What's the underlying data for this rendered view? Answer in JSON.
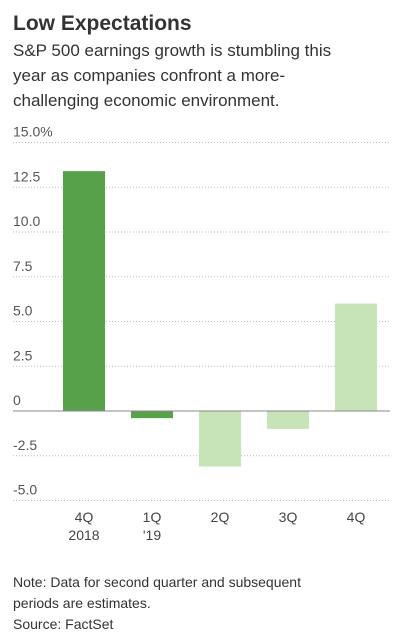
{
  "chart_data": {
    "type": "bar",
    "title": "Low Expectations",
    "subtitle": [
      "S&P 500 earnings growth is stumbling this",
      "year as companies confront a more-",
      "challenging economic environment."
    ],
    "categories": [
      [
        "4Q",
        "2018"
      ],
      [
        "1Q",
        "'19"
      ],
      [
        "2Q"
      ],
      [
        "3Q"
      ],
      [
        "4Q"
      ]
    ],
    "values": [
      13.4,
      -0.4,
      -3.1,
      -1.0,
      6.0
    ],
    "colors": [
      "#56a14a",
      "#56a14a",
      "#c7e3b8",
      "#c7e3b8",
      "#c7e3b8"
    ],
    "ylim": [
      -5,
      15
    ],
    "yticks": [
      {
        "value": 15,
        "label": "15.0%"
      },
      12.5,
      {
        "value": 10,
        "label": "10.0"
      },
      7.5,
      {
        "value": 5,
        "label": "5.0"
      },
      2.5,
      0,
      -2.5,
      {
        "value": -5,
        "label": "-5.0"
      }
    ],
    "grid": true,
    "notes": [
      "Note: Data for second quarter and subsequent",
      "periods are estimates.",
      "Source: FactSet"
    ]
  }
}
